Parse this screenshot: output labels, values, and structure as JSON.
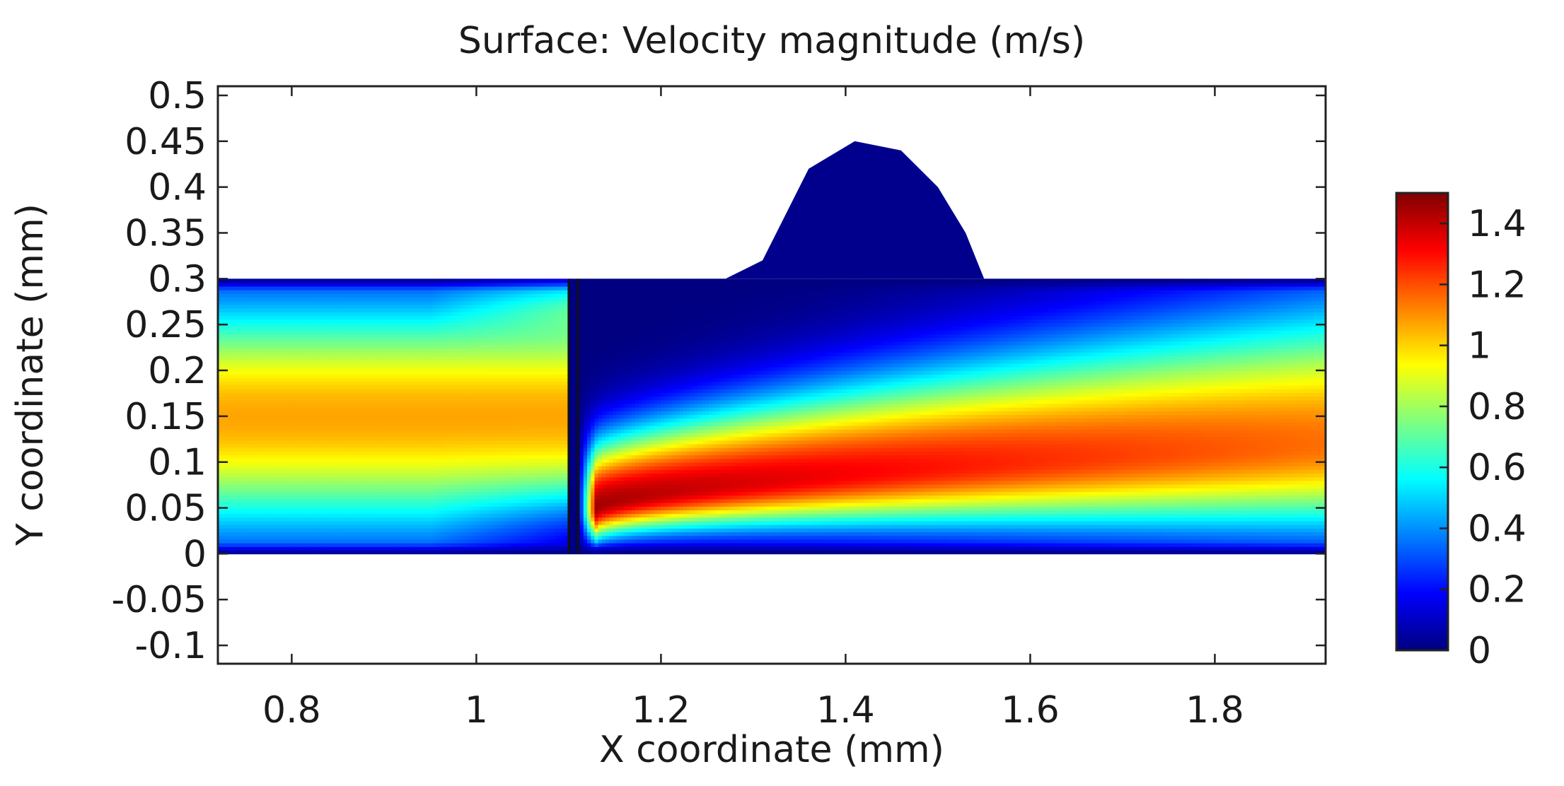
{
  "chart_data": {
    "type": "heatmap",
    "title": "Surface: Velocity magnitude (m/s)",
    "xlabel": "X coordinate (mm)",
    "ylabel": "Y coordinate (mm)",
    "xlim": [
      0.72,
      1.92
    ],
    "ylim": [
      -0.12,
      0.51
    ],
    "x_ticks": [
      0.8,
      1.0,
      1.2,
      1.4,
      1.6,
      1.8
    ],
    "x_tick_labels": [
      "0.8",
      "1",
      "1.2",
      "1.4",
      "1.6",
      "1.8"
    ],
    "y_ticks": [
      0.5,
      0.45,
      0.4,
      0.35,
      0.3,
      0.25,
      0.2,
      0.15,
      0.1,
      0.05,
      0,
      -0.05,
      -0.1
    ],
    "y_tick_labels": [
      "0.5",
      "0.45",
      "0.4",
      "0.35",
      "0.3",
      "0.25",
      "0.2",
      "0.15",
      "0.1",
      "0.05",
      "0",
      "-0.05",
      "-0.1"
    ],
    "colorbar": {
      "min": 0,
      "max": 1.5,
      "ticks": [
        1.4,
        1.2,
        1.0,
        0.8,
        0.6,
        0.4,
        0.2,
        0
      ],
      "tick_labels": [
        "1.4",
        "1.2",
        "1",
        "0.8",
        "0.6",
        "0.4",
        "0.2",
        "0"
      ],
      "colormap": "jet"
    },
    "domain": {
      "channel": {
        "x": [
          0.72,
          1.92
        ],
        "y": [
          0,
          0.3
        ]
      },
      "bump_outline": [
        [
          1.27,
          0.3
        ],
        [
          1.31,
          0.32
        ],
        [
          1.36,
          0.42
        ],
        [
          1.41,
          0.45
        ],
        [
          1.46,
          0.44
        ],
        [
          1.5,
          0.4
        ],
        [
          1.53,
          0.35
        ],
        [
          1.55,
          0.3
        ],
        [
          1.58,
          0.3
        ]
      ],
      "bump_velocity": 0.02
    },
    "divider_x": [
      1.1,
      1.11
    ],
    "velocity_profile": {
      "upstream": {
        "x_range": [
          0.72,
          1.08
        ],
        "peak_value": 1.07,
        "peak_y": 0.15
      },
      "wake_jet": {
        "x_start": 1.13,
        "peak_value": 1.45,
        "peak_y_start": 0.05,
        "peak_y_end": 0.12
      },
      "downstream": {
        "x": 1.92,
        "peak_value": 1.15,
        "peak_y": 0.12
      }
    }
  }
}
